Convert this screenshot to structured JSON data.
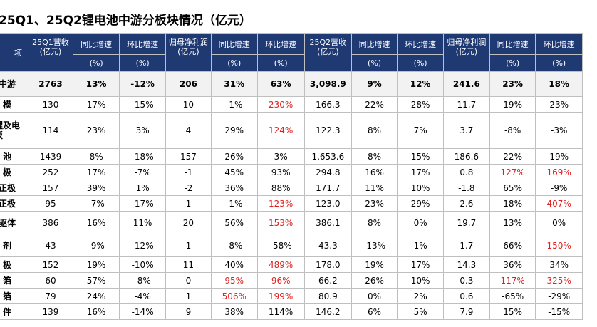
{
  "title": "25Q1、25Q2锂电池中游分板块情况（亿元）",
  "header": {
    "label_col": "项",
    "columns": [
      {
        "top": "25Q1营收\n(亿元)",
        "bottom": ""
      },
      {
        "top": "同比增速",
        "bottom": "(%)"
      },
      {
        "top": "环比增速",
        "bottom": "(%)"
      },
      {
        "top": "归母净利润\n(亿元)",
        "bottom": ""
      },
      {
        "top": "同比增速",
        "bottom": "(%)"
      },
      {
        "top": "环比增速",
        "bottom": "(%)"
      },
      {
        "top": "25Q2营收\n(亿元)",
        "bottom": ""
      },
      {
        "top": "同比增速",
        "bottom": "(%)"
      },
      {
        "top": "环比增速",
        "bottom": "(%)"
      },
      {
        "top": "归母净利润\n(亿元)",
        "bottom": ""
      },
      {
        "top": "同比增速",
        "bottom": "(%)"
      },
      {
        "top": "环比增速",
        "bottom": "(%)"
      }
    ]
  },
  "highlight_color": "#e02020",
  "rows": [
    {
      "label": "中游",
      "style": "total",
      "cells": [
        "2763",
        "13%",
        "-12%",
        "206",
        "31%",
        "63%",
        "3,098.9",
        "9%",
        "12%",
        "241.6",
        "23%",
        "18%"
      ],
      "red": []
    },
    {
      "label": "模",
      "style": "",
      "cells": [
        "130",
        "17%",
        "-15%",
        "10",
        "-1%",
        "230%",
        "166.3",
        "22%",
        "28%",
        "11.7",
        "19%",
        "23%"
      ],
      "red": [
        5
      ]
    },
    {
      "label": "锂及电\n板",
      "style": "tall",
      "cells": [
        "114",
        "23%",
        "3%",
        "4",
        "29%",
        "124%",
        "122.3",
        "8%",
        "7%",
        "3.7",
        "-8%",
        "-3%"
      ],
      "red": [
        5
      ]
    },
    {
      "label": "池",
      "style": "",
      "cells": [
        "1439",
        "8%",
        "-18%",
        "157",
        "26%",
        "3%",
        "1,653.6",
        "8%",
        "15%",
        "186.6",
        "22%",
        "19%"
      ],
      "red": []
    },
    {
      "label": "极",
      "style": "",
      "cells": [
        "252",
        "17%",
        "-7%",
        "-1",
        "45%",
        "93%",
        "294.8",
        "16%",
        "17%",
        "0.8",
        "127%",
        "169%"
      ],
      "red": [
        10,
        11
      ]
    },
    {
      "label": "正极",
      "style": "",
      "cells": [
        "157",
        "39%",
        "1%",
        "-2",
        "36%",
        "88%",
        "171.7",
        "11%",
        "10%",
        "-1.8",
        "65%",
        "-9%"
      ],
      "red": []
    },
    {
      "label": "正极",
      "style": "",
      "cells": [
        "95",
        "-7%",
        "-17%",
        "1",
        "-1%",
        "123%",
        "123.0",
        "23%",
        "29%",
        "2.6",
        "18%",
        "407%"
      ],
      "red": [
        5,
        11
      ]
    },
    {
      "label": "驱体",
      "style": "mid",
      "cells": [
        "386",
        "16%",
        "11%",
        "20",
        "56%",
        "153%",
        "386.1",
        "8%",
        "0%",
        "19.7",
        "13%",
        "0%"
      ],
      "red": [
        5
      ]
    },
    {
      "label": "剂",
      "style": "mid",
      "cells": [
        "43",
        "-9%",
        "-12%",
        "1",
        "-8%",
        "-58%",
        "43.3",
        "-13%",
        "1%",
        "1.7",
        "66%",
        "150%"
      ],
      "red": [
        11
      ]
    },
    {
      "label": "极",
      "style": "",
      "cells": [
        "152",
        "19%",
        "-10%",
        "11",
        "40%",
        "489%",
        "178.0",
        "19%",
        "17%",
        "14.3",
        "36%",
        "34%"
      ],
      "red": [
        5
      ]
    },
    {
      "label": "箔",
      "style": "",
      "cells": [
        "60",
        "57%",
        "-8%",
        "0",
        "95%",
        "96%",
        "66.2",
        "26%",
        "10%",
        "0.3",
        "117%",
        "325%"
      ],
      "red": [
        4,
        5,
        10,
        11
      ]
    },
    {
      "label": "箔",
      "style": "",
      "cells": [
        "79",
        "24%",
        "-4%",
        "1",
        "506%",
        "199%",
        "80.9",
        "0%",
        "2%",
        "0.6",
        "-65%",
        "-29%"
      ],
      "red": [
        4,
        5
      ]
    },
    {
      "label": "件",
      "style": "",
      "cells": [
        "139",
        "16%",
        "-14%",
        "9",
        "38%",
        "114%",
        "146.2",
        "6%",
        "5%",
        "7.9",
        "15%",
        "-15%"
      ],
      "red": []
    }
  ]
}
